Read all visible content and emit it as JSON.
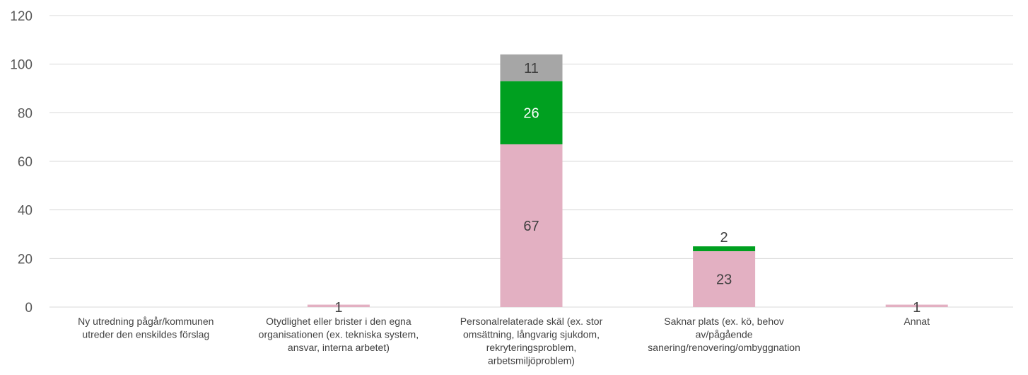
{
  "chart_data": {
    "type": "bar",
    "stacked": true,
    "title": "",
    "xlabel": "",
    "ylabel": "",
    "ylim": [
      0,
      120
    ],
    "yticks": [
      0,
      20,
      40,
      60,
      80,
      100,
      120
    ],
    "grid": true,
    "legend": "none",
    "categories": [
      [
        "Ny utredning pågår/kommunen",
        "utreder den enskildes förslag"
      ],
      [
        "Otydlighet eller brister i den egna",
        "organisationen (ex. tekniska system,",
        "ansvar, interna arbetet)"
      ],
      [
        "Personalrelaterade skäl (ex. stor",
        "omsättning, långvarig sjukdom,",
        "rekryteringsproblem,",
        "arbetsmiljöproblem)"
      ],
      [
        "Saknar plats (ex. kö, behov",
        "av/pågående",
        "sanering/renovering/ombyggnation"
      ],
      [
        "Annat"
      ]
    ],
    "series": [
      {
        "color": "#e3b0c2",
        "label_color": "#404040",
        "values": [
          0,
          1,
          67,
          23,
          1
        ]
      },
      {
        "color": "#00a020",
        "label_color": "#ffffff",
        "values": [
          0,
          0,
          26,
          2,
          0
        ]
      },
      {
        "color": "#a6a6a6",
        "label_color": "#404040",
        "values": [
          0,
          0,
          11,
          0,
          0
        ]
      }
    ]
  }
}
